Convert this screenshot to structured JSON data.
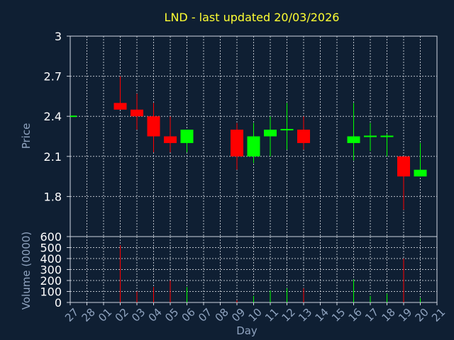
{
  "chart_data": [
    {
      "type": "candlestick",
      "title": "LND - last updated 20/03/2026",
      "ylabel": "Price",
      "ylim": [
        1.5,
        3.0
      ],
      "yticks": [
        1.8,
        2.1,
        2.4,
        2.7,
        3
      ],
      "ytick_labels": [
        "1.8",
        "2.1",
        "2.4",
        "2.7",
        "3"
      ],
      "grid": true,
      "categories": [
        "27",
        "28",
        "01",
        "02",
        "03",
        "04",
        "05",
        "06",
        "07",
        "08",
        "09",
        "10",
        "11",
        "12",
        "13",
        "14",
        "15",
        "16",
        "17",
        "18",
        "19",
        "20",
        "21"
      ],
      "up_color": "#00ff00",
      "down_color": "#ff0000",
      "candles": [
        {
          "i": 0,
          "open": 2.4,
          "high": 2.4,
          "low": 2.4,
          "close": 2.4
        },
        {
          "i": 3,
          "open": 2.5,
          "high": 2.7,
          "low": 2.45,
          "close": 2.45
        },
        {
          "i": 4,
          "open": 2.45,
          "high": 2.57,
          "low": 2.3,
          "close": 2.4
        },
        {
          "i": 5,
          "open": 2.4,
          "high": 2.5,
          "low": 2.13,
          "close": 2.25
        },
        {
          "i": 6,
          "open": 2.25,
          "high": 2.4,
          "low": 2.13,
          "close": 2.2
        },
        {
          "i": 7,
          "open": 2.2,
          "high": 2.3,
          "low": 2.13,
          "close": 2.3
        },
        {
          "i": 10,
          "open": 2.3,
          "high": 2.35,
          "low": 2.0,
          "close": 2.1
        },
        {
          "i": 11,
          "open": 2.1,
          "high": 2.35,
          "low": 2.05,
          "close": 2.25
        },
        {
          "i": 12,
          "open": 2.25,
          "high": 2.4,
          "low": 2.1,
          "close": 2.3
        },
        {
          "i": 13,
          "open": 2.29,
          "high": 2.5,
          "low": 2.15,
          "close": 2.3
        },
        {
          "i": 14,
          "open": 2.3,
          "high": 2.4,
          "low": 2.15,
          "close": 2.2
        },
        {
          "i": 17,
          "open": 2.2,
          "high": 2.5,
          "low": 2.07,
          "close": 2.25
        },
        {
          "i": 18,
          "open": 2.25,
          "high": 2.35,
          "low": 2.14,
          "close": 2.25
        },
        {
          "i": 19,
          "open": 2.25,
          "high": 2.27,
          "low": 2.1,
          "close": 2.25
        },
        {
          "i": 20,
          "open": 2.1,
          "high": 2.1,
          "low": 1.7,
          "close": 1.95
        },
        {
          "i": 21,
          "open": 1.95,
          "high": 2.2,
          "low": 1.95,
          "close": 2.0
        }
      ]
    },
    {
      "type": "bar",
      "ylabel": "Volume (0000)",
      "xlabel": "Day",
      "ylim": [
        0,
        600
      ],
      "yticks": [
        0,
        100,
        200,
        300,
        400,
        500,
        600
      ],
      "ytick_labels": [
        "0",
        "100",
        "200",
        "300",
        "400",
        "500",
        "600"
      ],
      "grid": true,
      "bars": [
        {
          "i": 3,
          "value": 520,
          "color": "#ff0000"
        },
        {
          "i": 4,
          "value": 100,
          "color": "#ff0000"
        },
        {
          "i": 5,
          "value": 140,
          "color": "#ff0000"
        },
        {
          "i": 6,
          "value": 200,
          "color": "#ff0000"
        },
        {
          "i": 7,
          "value": 140,
          "color": "#00ff00"
        },
        {
          "i": 10,
          "value": 20,
          "color": "#ff0000"
        },
        {
          "i": 11,
          "value": 60,
          "color": "#00ff00"
        },
        {
          "i": 12,
          "value": 110,
          "color": "#00ff00"
        },
        {
          "i": 13,
          "value": 130,
          "color": "#00ff00"
        },
        {
          "i": 14,
          "value": 130,
          "color": "#ff0000"
        },
        {
          "i": 17,
          "value": 210,
          "color": "#00ff00"
        },
        {
          "i": 18,
          "value": 60,
          "color": "#00ff00"
        },
        {
          "i": 19,
          "value": 80,
          "color": "#00ff00"
        },
        {
          "i": 20,
          "value": 400,
          "color": "#ff0000"
        },
        {
          "i": 21,
          "value": 40,
          "color": "#00ff00"
        }
      ]
    }
  ]
}
